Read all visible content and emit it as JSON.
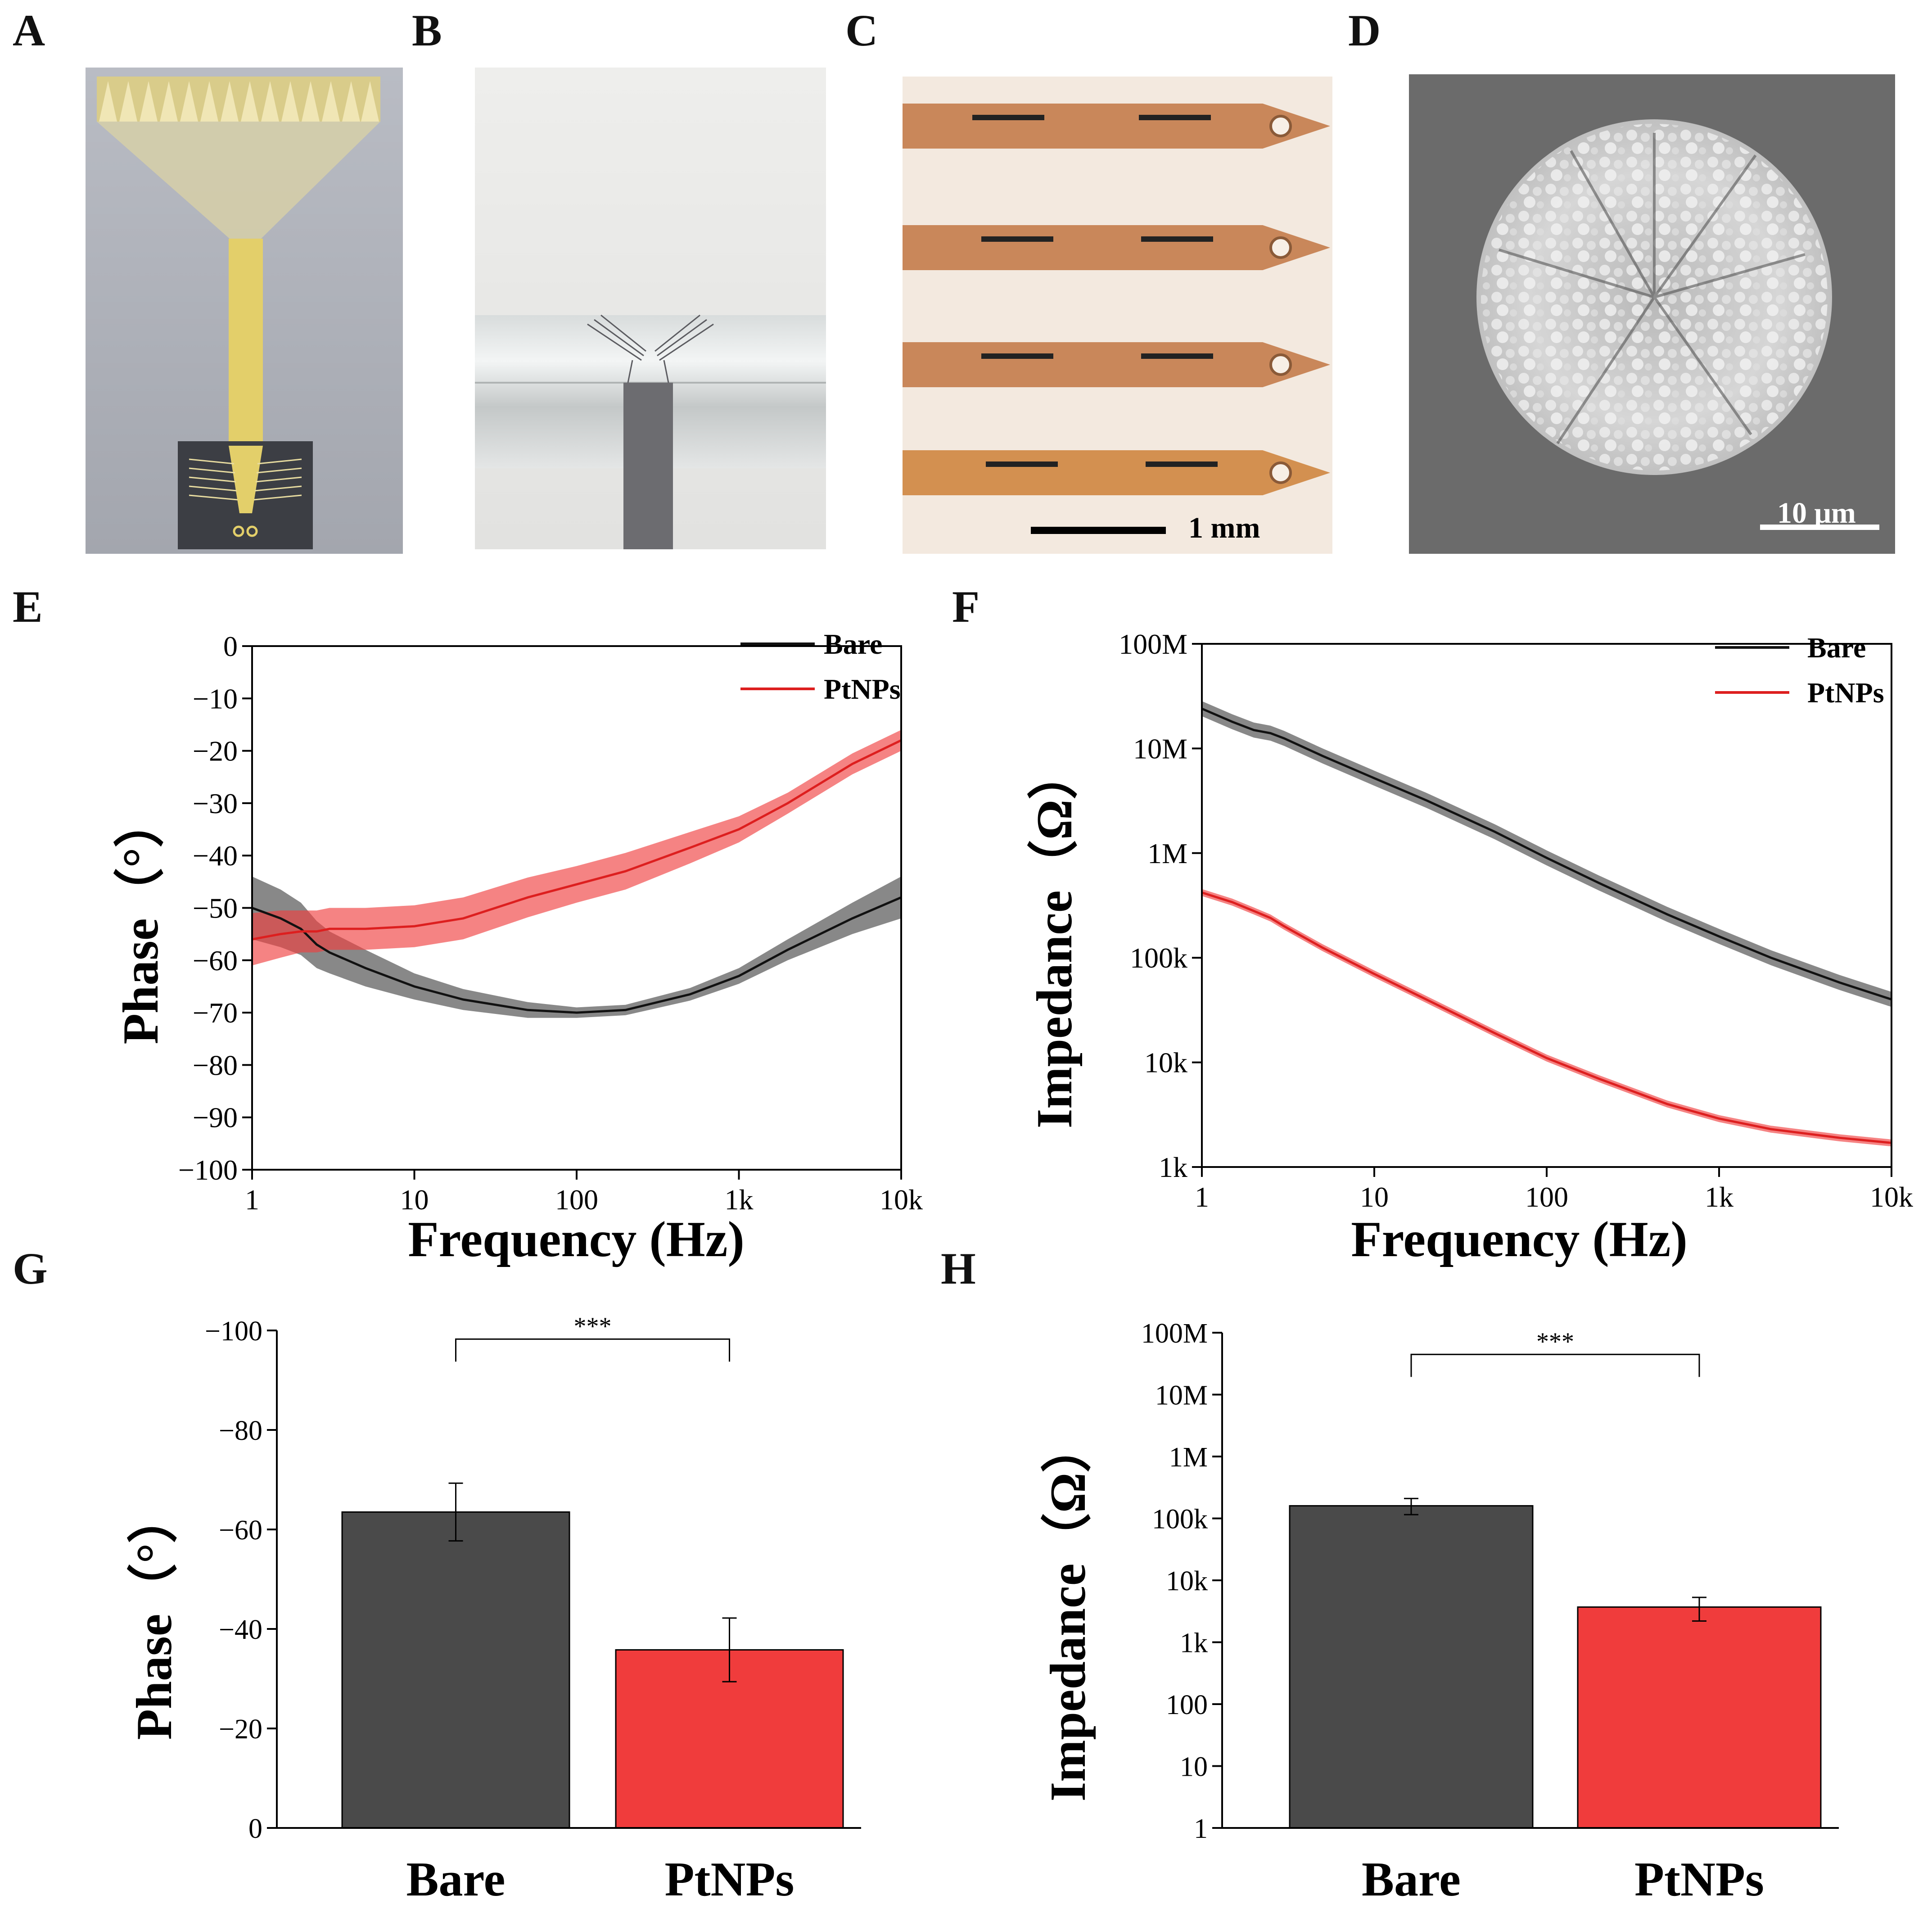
{
  "panels": {
    "A": "A",
    "B": "B",
    "C": "C",
    "D": "D",
    "E": "E",
    "F": "F",
    "G": "G",
    "H": "H"
  },
  "images": {
    "c_scale_label": "1 mm",
    "d_scale_label": "10 μm"
  },
  "colors": {
    "bare": "#111111",
    "bare_fill": "#555555",
    "pt": "#dd1f1f",
    "pt_fill": "#ef4040",
    "bar_bare": "#4a4a4a",
    "bar_pt": "#f03c3c"
  },
  "chart_data": [
    {
      "id": "E",
      "type": "line",
      "xscale": "log",
      "xlabel": "Frequency (Hz)",
      "ylabel": "Phase（°）",
      "xlim": [
        1,
        10000
      ],
      "ylim": [
        -100,
        0
      ],
      "xticks": [
        1,
        10,
        100,
        1000,
        10000
      ],
      "xtick_labels": [
        "1",
        "10",
        "100",
        "1k",
        "10k"
      ],
      "yticks": [
        0,
        -10,
        -20,
        -30,
        -40,
        -50,
        -60,
        -70,
        -80,
        -90,
        -100
      ],
      "ytick_labels": [
        "0",
        "−10",
        "−20",
        "−30",
        "−40",
        "−50",
        "−60",
        "−70",
        "−80",
        "−90",
        "−100"
      ],
      "legend": "top-right",
      "x": [
        1,
        1.5,
        2,
        2.5,
        3,
        5,
        10,
        20,
        50,
        100,
        200,
        500,
        1000,
        2000,
        5000,
        10000
      ],
      "series": [
        {
          "name": "Bare",
          "values": [
            -50,
            -52,
            -54,
            -57,
            -58.5,
            -61.5,
            -65,
            -67.5,
            -69.5,
            -70,
            -69.5,
            -66.5,
            -63,
            -58,
            -52,
            -48
          ],
          "band": [
            6,
            5.5,
            5,
            4.5,
            4,
            3.5,
            2.5,
            2,
            1.5,
            1,
            1,
            1.2,
            1.5,
            2,
            3,
            4
          ]
        },
        {
          "name": "PtNPs",
          "values": [
            -56,
            -55,
            -54.5,
            -54.5,
            -54,
            -54,
            -53.5,
            -52,
            -48,
            -45.5,
            -43,
            -38.5,
            -35,
            -30,
            -22.5,
            -18
          ],
          "band": [
            5,
            4.5,
            4,
            4,
            4,
            4,
            4,
            4,
            3.8,
            3.5,
            3.5,
            3,
            2.5,
            2,
            2,
            2
          ]
        }
      ]
    },
    {
      "id": "F",
      "type": "line",
      "xscale": "log",
      "yscale": "log",
      "xlabel": "Frequency (Hz)",
      "ylabel": "Impedance（Ω）",
      "xlim": [
        1,
        10000
      ],
      "ylim": [
        1000,
        100000000
      ],
      "xticks": [
        1,
        10,
        100,
        1000,
        10000
      ],
      "xtick_labels": [
        "1",
        "10",
        "100",
        "1k",
        "10k"
      ],
      "yticks": [
        1000,
        10000,
        100000,
        1000000,
        10000000,
        100000000
      ],
      "ytick_labels": [
        "1k",
        "10k",
        "100k",
        "1M",
        "10M",
        "100M"
      ],
      "legend": "top-right",
      "x": [
        1,
        1.5,
        2,
        2.5,
        3,
        5,
        10,
        20,
        50,
        100,
        200,
        500,
        1000,
        2000,
        5000,
        10000
      ],
      "series": [
        {
          "name": "Bare",
          "values": [
            24000000,
            18000000,
            15000000,
            14000000,
            12500000,
            8500000,
            5200000,
            3200000,
            1600000,
            900000,
            520000,
            260000,
            160000,
            100000,
            58000,
            40000
          ],
          "band_factor": 1.18
        },
        {
          "name": "PtNPs",
          "values": [
            420000,
            340000,
            280000,
            240000,
            200000,
            125000,
            70000,
            40000,
            19000,
            11000,
            7000,
            4000,
            2900,
            2300,
            1900,
            1700
          ],
          "band_factor": 1.08
        }
      ]
    },
    {
      "id": "G",
      "type": "bar",
      "categories": [
        "Bare",
        "PtNPs"
      ],
      "values": [
        -63.5,
        -35.8
      ],
      "errors": [
        5.8,
        6.4
      ],
      "ylabel": "Phase（°）",
      "ylim": [
        0,
        -100
      ],
      "yticks": [
        0,
        -20,
        -40,
        -60,
        -80,
        -100
      ],
      "ytick_labels": [
        "0",
        "−20",
        "−40",
        "−60",
        "−80",
        "−100"
      ],
      "significance": "***"
    },
    {
      "id": "H",
      "type": "bar",
      "yscale": "log",
      "categories": [
        "Bare",
        "PtNPs"
      ],
      "values": [
        160000,
        3700
      ],
      "errors_low": [
        115000,
        2200
      ],
      "errors_high": [
        210000,
        5300
      ],
      "ylabel": "Impedance（Ω）",
      "ylim": [
        1,
        100000000
      ],
      "yticks": [
        1,
        10,
        100,
        1000,
        10000,
        100000,
        1000000,
        10000000,
        100000000
      ],
      "ytick_labels": [
        "1",
        "10",
        "100",
        "1k",
        "10k",
        "100k",
        "1M",
        "10M",
        "100M"
      ],
      "significance": "***"
    }
  ]
}
